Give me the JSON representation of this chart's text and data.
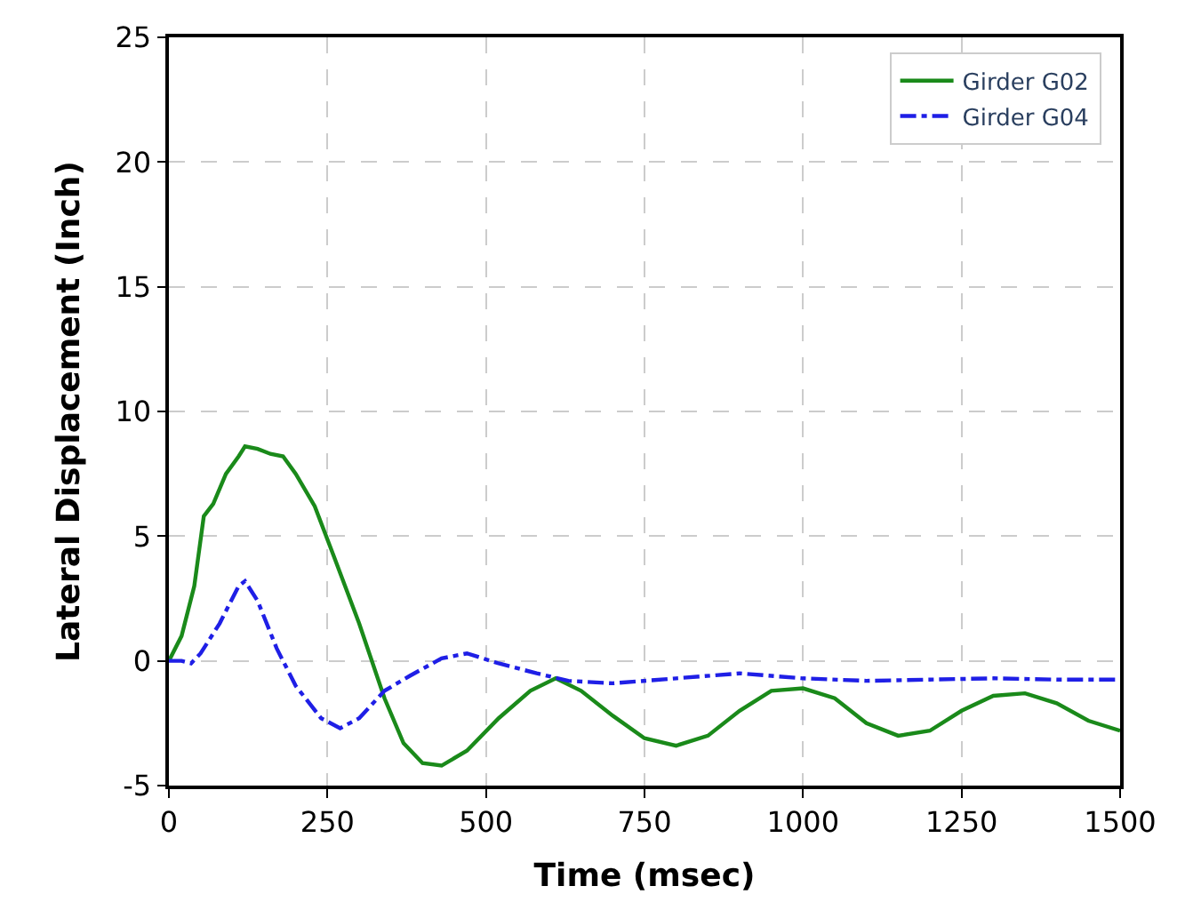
{
  "chart_data": {
    "type": "line",
    "xlabel": "Time (msec)",
    "ylabel": "Lateral Displacement (Inch)",
    "xlim": [
      0,
      1500
    ],
    "xticks": [
      0,
      250,
      500,
      750,
      1000,
      1250,
      1500
    ],
    "ylim": [
      -5,
      25
    ],
    "yticks": [
      -5,
      0,
      5,
      10,
      15,
      20,
      25
    ],
    "grid": true,
    "legend": "top right",
    "series": [
      {
        "name": "Girder G02",
        "color": "#1a8a1a",
        "line_style": "solid",
        "x": [
          0,
          20,
          40,
          55,
          70,
          90,
          110,
          120,
          140,
          160,
          180,
          200,
          230,
          260,
          300,
          340,
          370,
          400,
          430,
          470,
          520,
          570,
          610,
          650,
          700,
          750,
          800,
          850,
          900,
          950,
          1000,
          1050,
          1100,
          1150,
          1200,
          1250,
          1300,
          1350,
          1400,
          1450,
          1500
        ],
        "values": [
          0,
          1,
          3,
          5.8,
          6.3,
          7.5,
          8.2,
          8.6,
          8.5,
          8.3,
          8.2,
          7.5,
          6.2,
          4.2,
          1.5,
          -1.5,
          -3.3,
          -4.1,
          -4.2,
          -3.6,
          -2.3,
          -1.2,
          -0.7,
          -1.2,
          -2.2,
          -3.1,
          -3.4,
          -3.0,
          -2.0,
          -1.2,
          -1.1,
          -1.5,
          -2.5,
          -3.0,
          -2.8,
          -2.0,
          -1.4,
          -1.3,
          -1.7,
          -2.4,
          -2.8
        ]
      },
      {
        "name": "Girder G04",
        "color": "#1f1fe6",
        "line_style": "dashdot",
        "x": [
          0,
          20,
          35,
          50,
          80,
          110,
          120,
          140,
          170,
          200,
          240,
          270,
          300,
          340,
          380,
          430,
          470,
          520,
          580,
          630,
          700,
          800,
          900,
          1000,
          1100,
          1200,
          1300,
          1400,
          1500
        ],
        "values": [
          0,
          0,
          -0.1,
          0.3,
          1.5,
          3.0,
          3.2,
          2.4,
          0.5,
          -1.0,
          -2.3,
          -2.7,
          -2.3,
          -1.2,
          -0.6,
          0.1,
          0.3,
          -0.1,
          -0.5,
          -0.8,
          -0.9,
          -0.7,
          -0.5,
          -0.7,
          -0.8,
          -0.75,
          -0.7,
          -0.75,
          -0.75
        ]
      }
    ]
  }
}
